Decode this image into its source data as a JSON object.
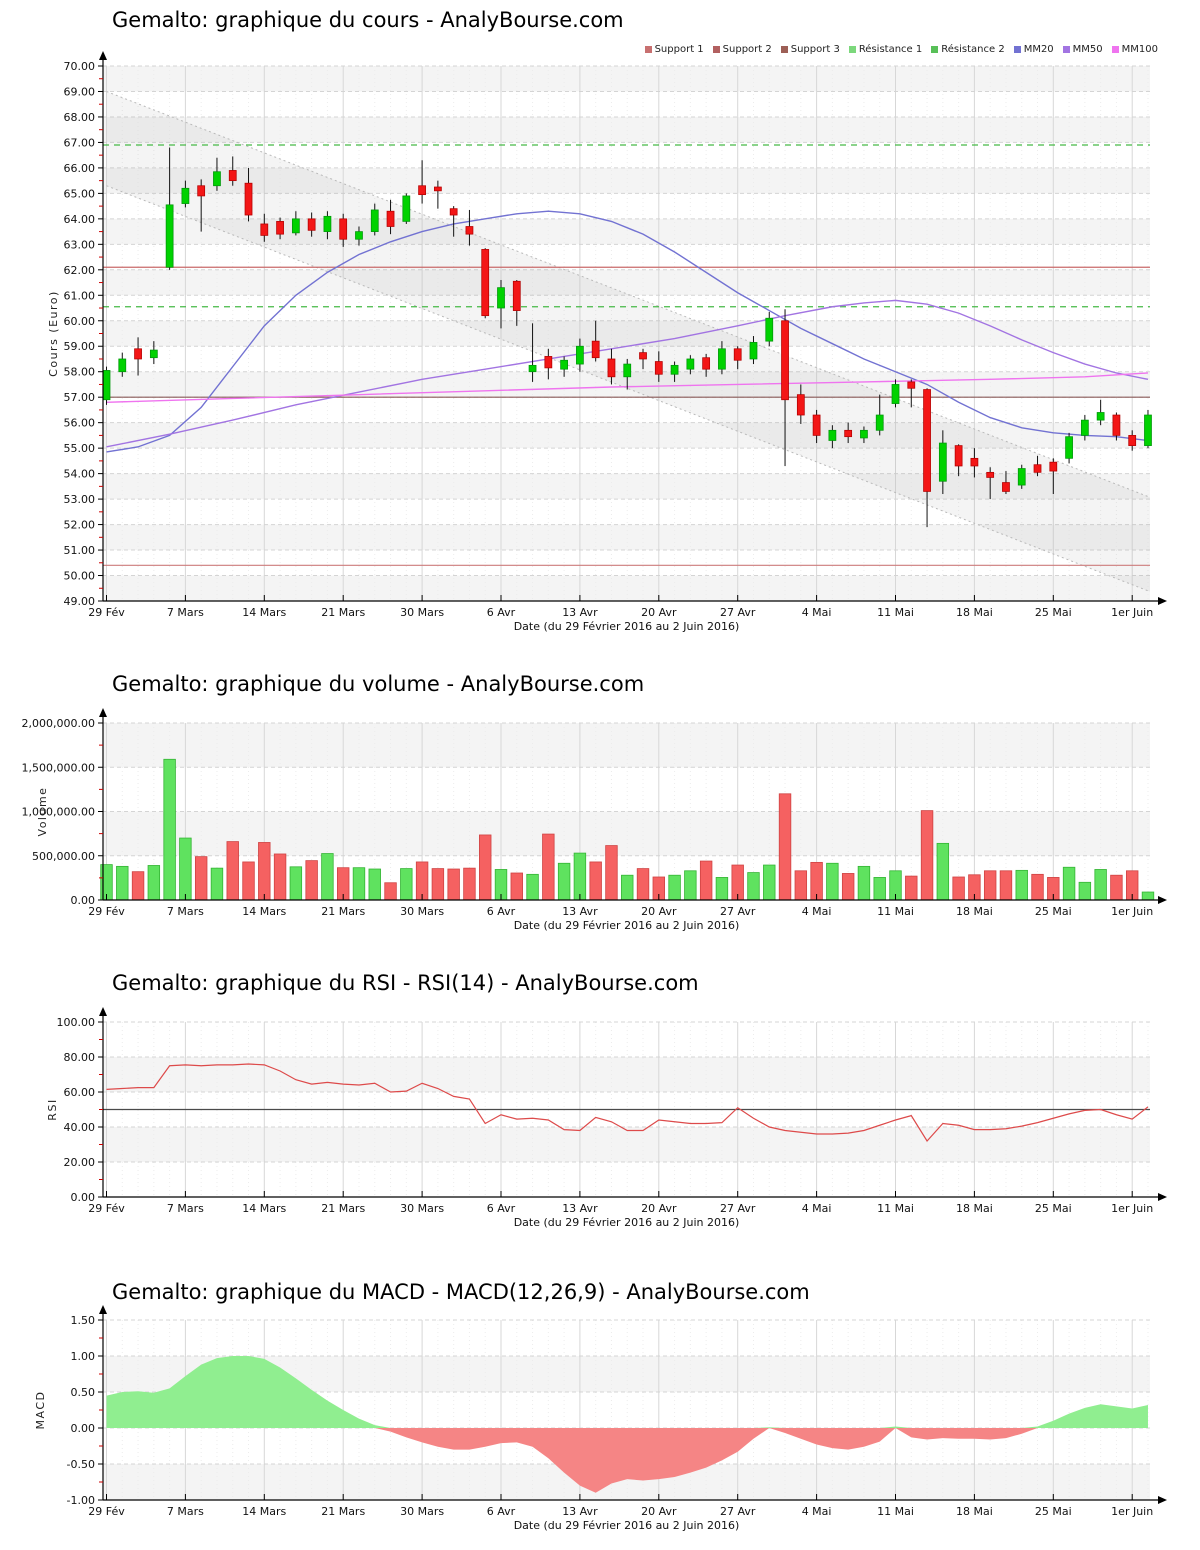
{
  "chart_data": [
    {
      "type": "candlestick",
      "title": "Gemalto: graphique du cours - AnalyBourse.com",
      "ylabel": "Cours (Euro)",
      "xlabel": "Date (du 29 Février 2016 au 2 Juin 2016)",
      "y_axis": {
        "min": 49,
        "max": 70,
        "step": 1,
        "decimals": 2
      },
      "x_tick_interval": 5,
      "x_tick_labels": [
        "29 Fév",
        "7 Mars",
        "14 Mars",
        "21 Mars",
        "30 Mars",
        "6 Avr",
        "13 Avr",
        "20 Avr",
        "27 Avr",
        "4 Mai",
        "11 Mai",
        "18 Mai",
        "25 Mai",
        "1er Juin"
      ],
      "colors": {
        "up": "#00d200",
        "up_stroke": "#00960a",
        "down": "#f31616",
        "down_stroke": "#b40000",
        "wick": "#111111"
      },
      "legend": [
        {
          "label": "Support 1",
          "color": "#c87070"
        },
        {
          "label": "Support 2",
          "color": "#b26060"
        },
        {
          "label": "Support 3",
          "color": "#9d5f56"
        },
        {
          "label": "Résistance 1",
          "color": "#7cd87c"
        },
        {
          "label": "Résistance 2",
          "color": "#58c058"
        },
        {
          "label": "MM20",
          "color": "#7272d2"
        },
        {
          "label": "MM50",
          "color": "#a274e2"
        },
        {
          "label": "MM100",
          "color": "#ef74ef"
        }
      ],
      "levels": [
        {
          "name": "Résistance 2",
          "value": 66.9,
          "style": "dashed",
          "color": "#46b946"
        },
        {
          "name": "Support 1",
          "value": 62.1,
          "style": "solid",
          "color": "#c96a6a"
        },
        {
          "name": "Résistance 1",
          "value": 60.55,
          "style": "dashed",
          "color": "#46b946"
        },
        {
          "name": "Support 2",
          "value": 57.0,
          "style": "solid",
          "color": "#8a5a58"
        },
        {
          "name": "Support 3",
          "value": 50.4,
          "style": "solid",
          "color": "#cd7c7c"
        }
      ],
      "channel": {
        "upper": [
          [
            0,
            69.0
          ],
          [
            66,
            53.1
          ]
        ],
        "lower": [
          [
            0,
            65.3
          ],
          [
            66,
            49.4
          ]
        ],
        "color": "#b9b9b9",
        "fill": "rgba(150,150,150,0.10)"
      },
      "moving_averages": [
        {
          "name": "MM20",
          "color": "#7272d2",
          "points": [
            [
              0,
              54.85
            ],
            [
              2,
              55.05
            ],
            [
              4,
              55.5
            ],
            [
              6,
              56.6
            ],
            [
              8,
              58.2
            ],
            [
              10,
              59.8
            ],
            [
              12,
              61.0
            ],
            [
              14,
              61.9
            ],
            [
              16,
              62.6
            ],
            [
              18,
              63.1
            ],
            [
              20,
              63.5
            ],
            [
              22,
              63.8
            ],
            [
              24,
              64.0
            ],
            [
              26,
              64.2
            ],
            [
              28,
              64.3
            ],
            [
              30,
              64.2
            ],
            [
              32,
              63.9
            ],
            [
              34,
              63.4
            ],
            [
              36,
              62.7
            ],
            [
              38,
              61.9
            ],
            [
              40,
              61.1
            ],
            [
              42,
              60.4
            ],
            [
              44,
              59.7
            ],
            [
              46,
              59.1
            ],
            [
              48,
              58.5
            ],
            [
              50,
              58.0
            ],
            [
              52,
              57.5
            ],
            [
              54,
              56.8
            ],
            [
              56,
              56.2
            ],
            [
              58,
              55.8
            ],
            [
              60,
              55.6
            ],
            [
              62,
              55.5
            ],
            [
              64,
              55.45
            ],
            [
              66,
              55.3
            ]
          ]
        },
        {
          "name": "MM50",
          "color": "#a274e2",
          "points": [
            [
              0,
              55.05
            ],
            [
              4,
              55.55
            ],
            [
              8,
              56.1
            ],
            [
              12,
              56.7
            ],
            [
              16,
              57.2
            ],
            [
              20,
              57.7
            ],
            [
              24,
              58.1
            ],
            [
              28,
              58.5
            ],
            [
              32,
              58.9
            ],
            [
              36,
              59.3
            ],
            [
              40,
              59.8
            ],
            [
              43,
              60.2
            ],
            [
              46,
              60.55
            ],
            [
              48,
              60.7
            ],
            [
              50,
              60.8
            ],
            [
              52,
              60.65
            ],
            [
              54,
              60.3
            ],
            [
              56,
              59.8
            ],
            [
              58,
              59.25
            ],
            [
              60,
              58.75
            ],
            [
              62,
              58.3
            ],
            [
              64,
              57.95
            ],
            [
              66,
              57.7
            ]
          ]
        },
        {
          "name": "MM100",
          "color": "#ef74ef",
          "points": [
            [
              0,
              56.8
            ],
            [
              8,
              56.95
            ],
            [
              16,
              57.1
            ],
            [
              24,
              57.25
            ],
            [
              32,
              57.4
            ],
            [
              40,
              57.5
            ],
            [
              48,
              57.6
            ],
            [
              56,
              57.7
            ],
            [
              62,
              57.8
            ],
            [
              66,
              57.95
            ]
          ]
        }
      ],
      "ohlc": [
        [
          56.9,
          58.2,
          56.7,
          58.05
        ],
        [
          58.0,
          58.75,
          57.8,
          58.5
        ],
        [
          58.9,
          59.35,
          57.85,
          58.5
        ],
        [
          58.55,
          59.2,
          58.3,
          58.85
        ],
        [
          62.1,
          66.8,
          62.0,
          64.55
        ],
        [
          64.6,
          65.5,
          64.45,
          65.2
        ],
        [
          65.3,
          65.55,
          63.5,
          64.9
        ],
        [
          65.3,
          66.4,
          65.1,
          65.85
        ],
        [
          65.9,
          66.45,
          65.3,
          65.5
        ],
        [
          65.4,
          66.0,
          63.9,
          64.15
        ],
        [
          63.8,
          64.2,
          63.1,
          63.35
        ],
        [
          63.9,
          64.05,
          63.2,
          63.4
        ],
        [
          63.45,
          64.3,
          63.35,
          64.0
        ],
        [
          64.0,
          64.25,
          63.3,
          63.55
        ],
        [
          63.5,
          64.3,
          63.2,
          64.1
        ],
        [
          64.0,
          64.2,
          62.9,
          63.2
        ],
        [
          63.2,
          63.7,
          62.95,
          63.5
        ],
        [
          63.5,
          64.6,
          63.35,
          64.35
        ],
        [
          64.3,
          64.75,
          63.4,
          63.7
        ],
        [
          63.9,
          65.0,
          63.8,
          64.9
        ],
        [
          65.3,
          66.3,
          64.6,
          64.95
        ],
        [
          65.25,
          65.5,
          64.4,
          65.1
        ],
        [
          64.4,
          64.5,
          63.3,
          64.15
        ],
        [
          63.7,
          64.35,
          62.95,
          63.4
        ],
        [
          62.8,
          62.85,
          60.1,
          60.2
        ],
        [
          60.5,
          61.6,
          59.7,
          61.3
        ],
        [
          61.55,
          61.6,
          59.8,
          60.4
        ],
        [
          58.0,
          59.9,
          57.6,
          58.25
        ],
        [
          58.6,
          58.9,
          57.7,
          58.15
        ],
        [
          58.1,
          58.6,
          57.8,
          58.45
        ],
        [
          58.3,
          59.3,
          58.0,
          59.0
        ],
        [
          59.2,
          60.0,
          58.4,
          58.55
        ],
        [
          58.5,
          58.9,
          57.5,
          57.8
        ],
        [
          57.8,
          58.5,
          57.3,
          58.3
        ],
        [
          58.75,
          58.9,
          58.1,
          58.5
        ],
        [
          58.4,
          58.8,
          57.6,
          57.9
        ],
        [
          57.9,
          58.4,
          57.6,
          58.25
        ],
        [
          58.1,
          58.65,
          57.9,
          58.5
        ],
        [
          58.55,
          58.7,
          57.8,
          58.1
        ],
        [
          58.1,
          59.2,
          57.9,
          58.9
        ],
        [
          58.9,
          59.0,
          58.1,
          58.45
        ],
        [
          58.5,
          59.4,
          58.3,
          59.15
        ],
        [
          59.2,
          60.35,
          59.0,
          60.1
        ],
        [
          60.0,
          60.45,
          54.3,
          56.9
        ],
        [
          57.1,
          57.5,
          55.95,
          56.3
        ],
        [
          56.3,
          56.5,
          55.2,
          55.5
        ],
        [
          55.3,
          55.9,
          55.0,
          55.7
        ],
        [
          55.7,
          56.0,
          55.2,
          55.45
        ],
        [
          55.4,
          55.85,
          55.2,
          55.7
        ],
        [
          55.7,
          57.1,
          55.5,
          56.3
        ],
        [
          56.75,
          57.7,
          56.6,
          57.5
        ],
        [
          57.6,
          57.7,
          56.6,
          57.35
        ],
        [
          57.3,
          57.35,
          51.9,
          53.3
        ],
        [
          53.7,
          55.7,
          53.2,
          55.2
        ],
        [
          55.1,
          55.15,
          53.9,
          54.3
        ],
        [
          54.6,
          55.0,
          53.85,
          54.3
        ],
        [
          54.05,
          54.25,
          53.0,
          53.85
        ],
        [
          53.65,
          54.1,
          53.2,
          53.3
        ],
        [
          53.55,
          54.35,
          53.4,
          54.2
        ],
        [
          54.35,
          54.7,
          53.9,
          54.05
        ],
        [
          54.45,
          54.6,
          53.2,
          54.1
        ],
        [
          54.6,
          55.6,
          54.4,
          55.45
        ],
        [
          55.5,
          56.3,
          55.3,
          56.1
        ],
        [
          56.1,
          56.9,
          55.9,
          56.4
        ],
        [
          56.3,
          56.4,
          55.3,
          55.5
        ],
        [
          55.5,
          55.7,
          54.9,
          55.1
        ],
        [
          55.1,
          56.5,
          55.0,
          56.3
        ]
      ]
    },
    {
      "type": "bar",
      "title": "Gemalto: graphique du volume - AnalyBourse.com",
      "ylabel": "Volume",
      "xlabel": "Date (du 29 Février 2016 au 2 Juin 2016)",
      "y_axis": {
        "min": 0,
        "max": 2000000,
        "step": 500000,
        "decimals": 2
      },
      "x_tick_interval": 5,
      "x_tick_labels": [
        "29 Fév",
        "7 Mars",
        "14 Mars",
        "21 Mars",
        "30 Mars",
        "6 Avr",
        "13 Avr",
        "20 Avr",
        "27 Avr",
        "4 Mai",
        "11 Mai",
        "18 Mai",
        "25 Mai",
        "1er Juin"
      ],
      "colors": {
        "up": "#5fe25f",
        "up_stroke": "#35b435",
        "down": "#f56161",
        "down_stroke": "#cf4343"
      },
      "values": [
        400000,
        380000,
        320000,
        390000,
        1590000,
        700000,
        490000,
        360000,
        660000,
        430000,
        650000,
        520000,
        375000,
        445000,
        525000,
        365000,
        365000,
        350000,
        195000,
        355000,
        430000,
        355000,
        350000,
        360000,
        735000,
        345000,
        305000,
        290000,
        745000,
        415000,
        530000,
        430000,
        615000,
        280000,
        355000,
        260000,
        280000,
        330000,
        440000,
        255000,
        395000,
        310000,
        395000,
        1200000,
        330000,
        425000,
        415000,
        300000,
        380000,
        255000,
        330000,
        270000,
        1010000,
        640000,
        260000,
        285000,
        330000,
        330000,
        335000,
        290000,
        255000,
        370000,
        200000,
        345000,
        280000,
        330000,
        90000
      ],
      "dirs": [
        "u",
        "u",
        "d",
        "u",
        "u",
        "u",
        "d",
        "u",
        "d",
        "d",
        "d",
        "d",
        "u",
        "d",
        "u",
        "d",
        "u",
        "u",
        "d",
        "u",
        "d",
        "d",
        "d",
        "d",
        "d",
        "u",
        "d",
        "u",
        "d",
        "u",
        "u",
        "d",
        "d",
        "u",
        "d",
        "d",
        "u",
        "u",
        "d",
        "u",
        "d",
        "u",
        "u",
        "d",
        "d",
        "d",
        "u",
        "d",
        "u",
        "u",
        "u",
        "d",
        "d",
        "u",
        "d",
        "d",
        "d",
        "d",
        "u",
        "d",
        "d",
        "u",
        "u",
        "u",
        "d",
        "d",
        "u"
      ]
    },
    {
      "type": "line",
      "title": "Gemalto: graphique du RSI - RSI(14) - AnalyBourse.com",
      "ylabel": "RSI",
      "xlabel": "Date (du 29 Février 2016 au 2 Juin 2016)",
      "y_axis": {
        "min": 0,
        "max": 100,
        "step": 20,
        "decimals": 2
      },
      "x_tick_interval": 5,
      "x_tick_labels": [
        "29 Fév",
        "7 Mars",
        "14 Mars",
        "21 Mars",
        "30 Mars",
        "6 Avr",
        "13 Avr",
        "20 Avr",
        "27 Avr",
        "4 Mai",
        "11 Mai",
        "18 Mai",
        "25 Mai",
        "1er Juin"
      ],
      "color": "#dd4a4a",
      "midline": {
        "value": 50,
        "color": "#4a4a4a"
      },
      "values": [
        61.5,
        62,
        62.5,
        62.5,
        75,
        75.5,
        75,
        75.5,
        75.5,
        76,
        75.5,
        72,
        67,
        64.5,
        65.5,
        64.5,
        64,
        65,
        60,
        60.5,
        65,
        62,
        57.5,
        56,
        42,
        47,
        44.5,
        45,
        44,
        38.5,
        38,
        45.5,
        43,
        38,
        38,
        44,
        43,
        42,
        42,
        42.5,
        51,
        45,
        40,
        38,
        37,
        36,
        36,
        36.5,
        38,
        41,
        44,
        46.5,
        32,
        42,
        41,
        38.5,
        38.5,
        39,
        40.5,
        42.5,
        45,
        47.5,
        49.5,
        50,
        47,
        44.5,
        51.5
      ]
    },
    {
      "type": "area",
      "title": "Gemalto: graphique du MACD - MACD(12,26,9) - AnalyBourse.com",
      "ylabel": "MACD",
      "xlabel": "Date (du 29 Février 2016 au 2 Juin 2016)",
      "y_axis": {
        "min": -1.0,
        "max": 1.5,
        "step": 0.5,
        "decimals": 2
      },
      "x_tick_interval": 5,
      "x_tick_labels": [
        "29 Fév",
        "7 Mars",
        "14 Mars",
        "21 Mars",
        "30 Mars",
        "6 Avr",
        "13 Avr",
        "20 Avr",
        "27 Avr",
        "4 Mai",
        "11 Mai",
        "18 Mai",
        "25 Mai",
        "1er Juin"
      ],
      "colors": {
        "pos": "#90ee90",
        "neg": "#f58585"
      },
      "values": [
        0.45,
        0.5,
        0.51,
        0.49,
        0.55,
        0.72,
        0.88,
        0.97,
        1.0,
        1.0,
        0.96,
        0.84,
        0.69,
        0.53,
        0.38,
        0.25,
        0.13,
        0.04,
        -0.05,
        -0.13,
        -0.2,
        -0.26,
        -0.3,
        -0.3,
        -0.26,
        -0.21,
        -0.2,
        -0.26,
        -0.42,
        -0.62,
        -0.8,
        -0.9,
        -0.77,
        -0.71,
        -0.73,
        -0.71,
        -0.68,
        -0.62,
        -0.55,
        -0.45,
        -0.33,
        -0.15,
        0.01,
        -0.07,
        -0.15,
        -0.23,
        -0.28,
        -0.3,
        -0.26,
        -0.19,
        0.02,
        -0.13,
        -0.16,
        -0.14,
        -0.15,
        -0.15,
        -0.16,
        -0.14,
        -0.08,
        0.02,
        0.1,
        0.2,
        0.28,
        0.33,
        0.3,
        0.27,
        0.32
      ]
    }
  ]
}
